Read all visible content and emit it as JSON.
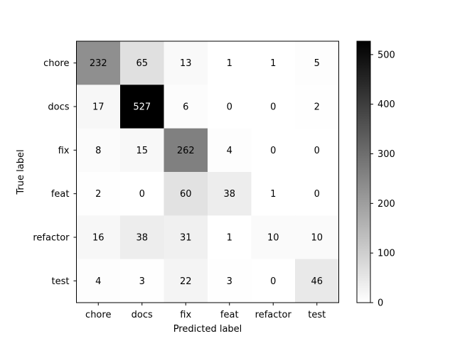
{
  "chart_data": {
    "type": "heatmap",
    "title": "",
    "xlabel": "Predicted label",
    "ylabel": "True label",
    "x_categories": [
      "chore",
      "docs",
      "fix",
      "feat",
      "refactor",
      "test"
    ],
    "y_categories": [
      "chore",
      "docs",
      "fix",
      "feat",
      "refactor",
      "test"
    ],
    "values": [
      [
        232,
        65,
        13,
        1,
        1,
        5
      ],
      [
        17,
        527,
        6,
        0,
        0,
        2
      ],
      [
        8,
        15,
        262,
        4,
        0,
        0
      ],
      [
        2,
        0,
        60,
        38,
        1,
        0
      ],
      [
        16,
        38,
        31,
        1,
        10,
        10
      ],
      [
        4,
        3,
        22,
        3,
        0,
        46
      ]
    ],
    "colormap": "Greys",
    "color_range": [
      0,
      527
    ],
    "colorbar_ticks": [
      0,
      100,
      200,
      300,
      400,
      500
    ],
    "grid": false,
    "colors": {
      "low": "#ffffff",
      "high": "#000000"
    }
  }
}
